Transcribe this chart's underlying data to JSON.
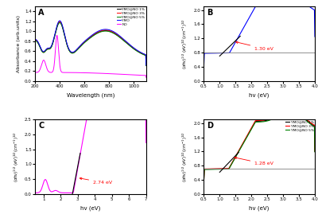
{
  "panel_A": {
    "title": "A",
    "xlabel": "Wavelength (nm)",
    "ylabel": "Absorbance (arb.units)",
    "xlim": [
      200,
      1100
    ],
    "ylim": [
      0.0,
      1.5
    ],
    "yticks": [
      0.0,
      0.2,
      0.4,
      0.6,
      0.8,
      1.0,
      1.2,
      1.4
    ],
    "xticks": [
      200,
      400,
      600,
      800,
      1000
    ],
    "legend": [
      "YMO@NO 1%",
      "YMO@NO 3%",
      "YMO@NO 5%",
      "YMO",
      "NO"
    ],
    "colors": [
      "black",
      "red",
      "green",
      "blue",
      "magenta"
    ]
  },
  "panel_B": {
    "title": "B",
    "xlabel": "hv (eV)",
    "xlim": [
      0.5,
      4.0
    ],
    "ylim": [
      0.0,
      2.1
    ],
    "yticks": [
      0.0,
      0.4,
      0.8,
      1.2,
      1.6,
      2.0
    ],
    "xticks": [
      0.5,
      1.0,
      1.5,
      2.0,
      2.5,
      3.0,
      3.5,
      4.0
    ],
    "annotation": "1.30 eV",
    "hline_y": 0.8,
    "color": "blue"
  },
  "panel_C": {
    "title": "C",
    "xlabel": "hv (eV)",
    "xlim": [
      0.5,
      7.0
    ],
    "ylim": [
      0.0,
      2.5
    ],
    "yticks": [
      0.0,
      0.5,
      1.0,
      1.5,
      2.0,
      2.5
    ],
    "xticks": [
      1,
      2,
      3,
      4,
      5,
      6,
      7
    ],
    "annotation": "2.74 eV",
    "color": "magenta"
  },
  "panel_D": {
    "title": "D",
    "xlabel": "hv (eV)",
    "xlim": [
      0.5,
      4.0
    ],
    "ylim": [
      0.0,
      2.1
    ],
    "yticks": [
      0.0,
      0.4,
      0.8,
      1.2,
      1.6,
      2.0
    ],
    "xticks": [
      0.5,
      1.0,
      1.5,
      2.0,
      2.5,
      3.0,
      3.5,
      4.0
    ],
    "annotation": "1.28 eV",
    "hline_y": 0.72,
    "legend": [
      "YMO@NO 1%",
      "YMO@NO 3%",
      "YMO@NO 5%"
    ],
    "colors": [
      "black",
      "red",
      "green"
    ]
  }
}
